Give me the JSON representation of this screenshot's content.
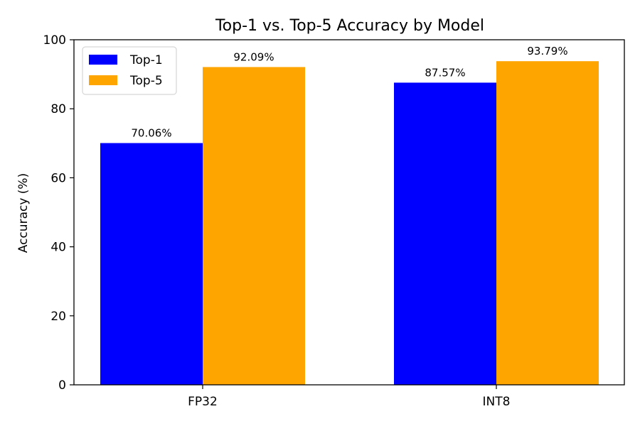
{
  "chart_data": {
    "type": "bar",
    "title": "Top-1 vs. Top-5 Accuracy by Model",
    "xlabel": "",
    "ylabel": "Accuracy (%)",
    "categories": [
      "FP32",
      "INT8"
    ],
    "series": [
      {
        "name": "Top-1",
        "values": [
          70.06,
          87.57
        ],
        "color": "#0000ff"
      },
      {
        "name": "Top-5",
        "values": [
          92.09,
          93.79
        ],
        "color": "#ffa500"
      }
    ],
    "data_labels": [
      [
        "70.06%",
        "87.57%"
      ],
      [
        "92.09%",
        "93.79%"
      ]
    ],
    "ylim": [
      0,
      100
    ],
    "yticks": [
      0,
      20,
      40,
      60,
      80,
      100
    ],
    "grid": false,
    "legend_position": "top-left"
  }
}
